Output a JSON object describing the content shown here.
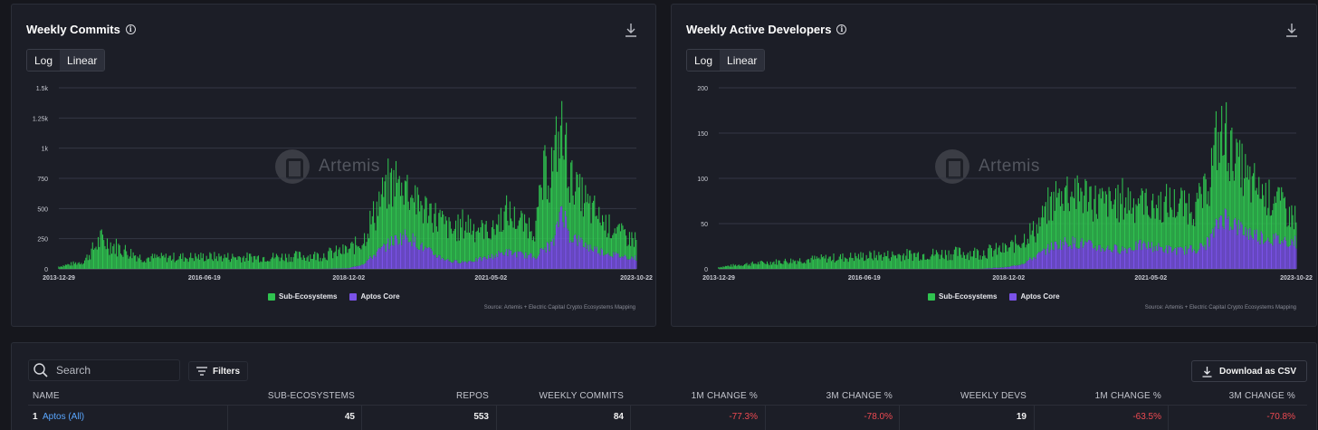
{
  "chart_commits": {
    "title": "Weekly Commits",
    "scale_options": [
      "Log",
      "Linear"
    ],
    "watermark": "Artemis",
    "source": "Source: Artemis + Electric Capital Crypto Ecosystems Mapping",
    "legend": [
      {
        "name": "Sub-Ecosystems",
        "color": "#2fc34f"
      },
      {
        "name": "Aptos Core",
        "color": "#7a52e8"
      }
    ]
  },
  "chart_devs": {
    "title": "Weekly Active Developers",
    "scale_options": [
      "Log",
      "Linear"
    ],
    "watermark": "Artemis",
    "source": "Source: Artemis + Electric Capital Crypto Ecosystems Mapping",
    "legend": [
      {
        "name": "Sub-Ecosystems",
        "color": "#2fc34f"
      },
      {
        "name": "Aptos Core",
        "color": "#7a52e8"
      }
    ]
  },
  "chart_data": [
    {
      "type": "bar",
      "stacked": true,
      "title": "Weekly Commits",
      "x_ticks": [
        "2013-12-29",
        "2016-06-19",
        "2018-12-02",
        "2021-05-02",
        "2023-10-22"
      ],
      "y_ticks": [
        "0",
        "250",
        "500",
        "750",
        "1k",
        "1.25k",
        "1.5k"
      ],
      "ylim": [
        0,
        1500
      ],
      "x": [
        "2013-12-29",
        "2014-06-01",
        "2014-09-14",
        "2015-06-01",
        "2016-06-19",
        "2017-06-01",
        "2018-06-01",
        "2018-12-02",
        "2019-03-01",
        "2019-06-01",
        "2019-09-01",
        "2019-12-01",
        "2020-03-01",
        "2020-06-01",
        "2020-09-01",
        "2020-12-01",
        "2021-03-01",
        "2021-05-02",
        "2021-08-01",
        "2021-11-01",
        "2022-02-01",
        "2022-04-01",
        "2022-06-01",
        "2022-07-15",
        "2022-09-01",
        "2022-11-01",
        "2023-01-01",
        "2023-04-01",
        "2023-07-01",
        "2023-10-22"
      ],
      "series": [
        {
          "name": "Sub-Ecosystems",
          "values": [
            20,
            60,
            240,
            90,
            100,
            95,
            110,
            150,
            200,
            380,
            500,
            420,
            330,
            320,
            250,
            320,
            250,
            210,
            320,
            260,
            240,
            600,
            650,
            650,
            520,
            400,
            330,
            260,
            200,
            150
          ]
        },
        {
          "name": "Aptos Core",
          "values": [
            0,
            0,
            0,
            0,
            0,
            0,
            0,
            5,
            40,
            140,
            230,
            280,
            180,
            110,
            60,
            60,
            80,
            100,
            140,
            120,
            100,
            170,
            220,
            540,
            280,
            230,
            180,
            140,
            110,
            90
          ]
        }
      ]
    },
    {
      "type": "bar",
      "stacked": true,
      "title": "Weekly Active Developers",
      "x_ticks": [
        "2013-12-29",
        "2016-06-19",
        "2018-12-02",
        "2021-05-02",
        "2023-10-22"
      ],
      "y_ticks": [
        "0",
        "50",
        "100",
        "150",
        "200"
      ],
      "ylim": [
        0,
        200
      ],
      "x": [
        "2013-12-29",
        "2014-06-01",
        "2015-06-01",
        "2016-06-19",
        "2017-06-01",
        "2018-06-01",
        "2018-12-02",
        "2019-03-01",
        "2019-06-01",
        "2019-09-01",
        "2019-12-01",
        "2020-03-01",
        "2020-06-01",
        "2020-09-01",
        "2020-12-01",
        "2021-03-01",
        "2021-05-02",
        "2021-08-01",
        "2021-11-01",
        "2022-02-01",
        "2022-04-01",
        "2022-06-01",
        "2022-07-15",
        "2022-09-01",
        "2022-11-01",
        "2023-01-01",
        "2023-04-01",
        "2023-07-01",
        "2023-10-22"
      ],
      "series": [
        {
          "name": "Sub-Ecosystems",
          "values": [
            2,
            5,
            10,
            14,
            16,
            18,
            20,
            28,
            30,
            50,
            60,
            55,
            50,
            50,
            55,
            50,
            45,
            48,
            50,
            48,
            55,
            85,
            90,
            85,
            70,
            55,
            50,
            45,
            25
          ]
        },
        {
          "name": "Aptos Core",
          "values": [
            0,
            0,
            0,
            0,
            0,
            0,
            2,
            6,
            15,
            25,
            30,
            28,
            24,
            22,
            22,
            26,
            25,
            22,
            20,
            22,
            25,
            40,
            60,
            55,
            45,
            40,
            35,
            32,
            30
          ]
        }
      ]
    }
  ],
  "table": {
    "search_placeholder": "Search",
    "filters_label": "Filters",
    "csv_label": "Download as CSV",
    "columns": [
      "NAME",
      "SUB-ECOSYSTEMS",
      "REPOS",
      "WEEKLY COMMITS",
      "1M CHANGE %",
      "3M CHANGE %",
      "WEEKLY DEVS",
      "1M CHANGE %",
      "3M CHANGE %"
    ],
    "rows": [
      {
        "rank": "1",
        "name": "Aptos (All)",
        "sub_ecosystems": "45",
        "repos": "553",
        "weekly_commits": "84",
        "commits_1m": "-77.3%",
        "commits_3m": "-78.0%",
        "weekly_devs": "19",
        "devs_1m": "-63.5%",
        "devs_3m": "-70.8%"
      }
    ]
  }
}
